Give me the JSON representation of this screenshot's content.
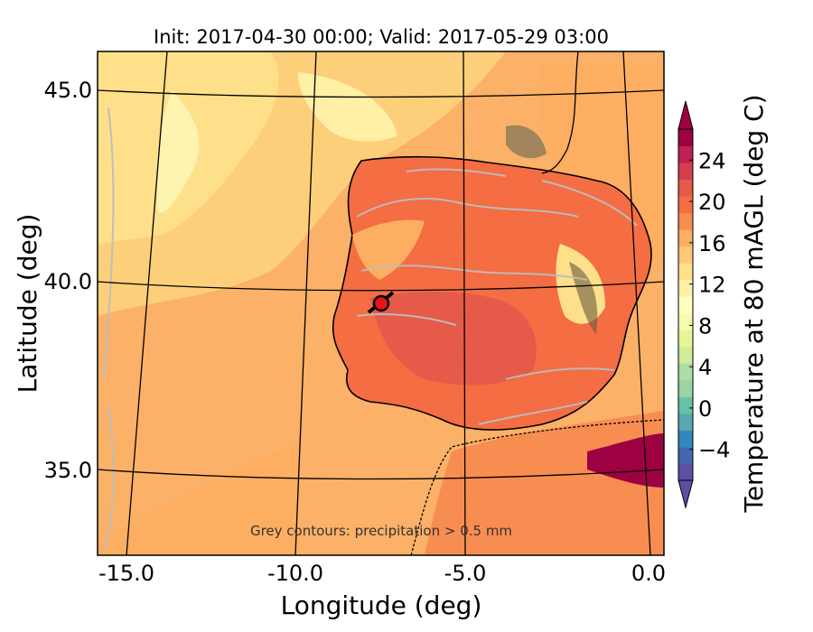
{
  "title": "Init: 2017-04-30 00:00; Valid: 2017-05-29 03:00",
  "map": {
    "xlabel": "Longitude (deg)",
    "ylabel": "Latitude (deg)",
    "x_ticks": [
      "-15.0",
      "-10.0",
      "-5.0",
      "0.0"
    ],
    "y_ticks": [
      "45.0",
      "40.0",
      "35.0"
    ],
    "annotation": "Grey contours: precipitation  > 0.5 mm",
    "marker": {
      "lon": -7.6,
      "lat": 39.3,
      "color": "#e8141c"
    }
  },
  "colorbar": {
    "label": "Temperature at 80 mAGL (deg C)",
    "ticks": [
      "24",
      "20",
      "16",
      "12",
      "8",
      "4",
      "0",
      "−4"
    ],
    "range": [
      -7,
      27
    ],
    "colors": [
      "#5e4fa2",
      "#4468ae",
      "#3288bd",
      "#59a8b0",
      "#66c2a5",
      "#99d5a4",
      "#abdda4",
      "#d0ec9c",
      "#e6f598",
      "#f7fbae",
      "#ffffbf",
      "#fff0a6",
      "#fee08b",
      "#fdc877",
      "#fdae61",
      "#f88d52",
      "#f46d43",
      "#e55a49",
      "#d53e4f",
      "#bd2250",
      "#9e0142"
    ],
    "arrow_top_color": "#9e0142",
    "arrow_bottom_color": "#5e4fa2"
  },
  "colors": {
    "ocean": "#fbb167",
    "ocean_cool": "#fdd37c",
    "land_warm": "#f46d43",
    "coast": "#000000",
    "precip": "#bdbdbd"
  }
}
